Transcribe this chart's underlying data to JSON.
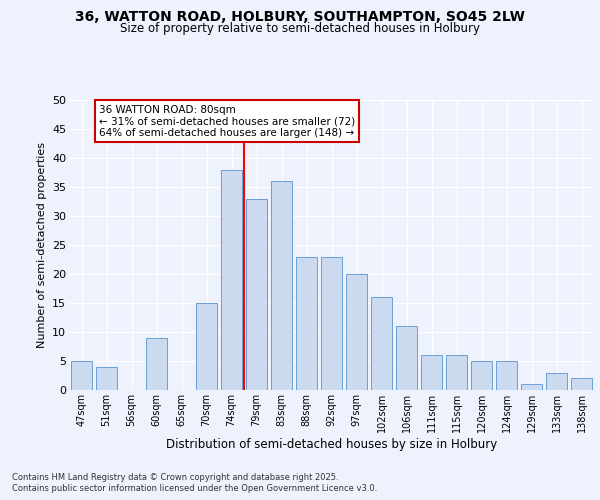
{
  "title1": "36, WATTON ROAD, HOLBURY, SOUTHAMPTON, SO45 2LW",
  "title2": "Size of property relative to semi-detached houses in Holbury",
  "xlabel": "Distribution of semi-detached houses by size in Holbury",
  "ylabel": "Number of semi-detached properties",
  "categories": [
    "47sqm",
    "51sqm",
    "56sqm",
    "60sqm",
    "65sqm",
    "70sqm",
    "74sqm",
    "79sqm",
    "83sqm",
    "88sqm",
    "92sqm",
    "97sqm",
    "102sqm",
    "106sqm",
    "111sqm",
    "115sqm",
    "120sqm",
    "124sqm",
    "129sqm",
    "133sqm",
    "138sqm"
  ],
  "values": [
    5,
    4,
    0,
    9,
    0,
    15,
    38,
    33,
    36,
    23,
    23,
    20,
    16,
    11,
    6,
    6,
    5,
    5,
    1,
    3,
    2
  ],
  "bar_color": "#ccdaf0",
  "bar_edge_color": "#6b9fd4",
  "red_line_x": 6.5,
  "annotation_title": "36 WATTON ROAD: 80sqm",
  "annotation_line1": "← 31% of semi-detached houses are smaller (72)",
  "annotation_line2": "64% of semi-detached houses are larger (148) →",
  "annotation_box_facecolor": "#ffffff",
  "annotation_box_edgecolor": "#cc0000",
  "footer1": "Contains HM Land Registry data © Crown copyright and database right 2025.",
  "footer2": "Contains public sector information licensed under the Open Government Licence v3.0.",
  "bg_color": "#edf2fc",
  "ylim_max": 50,
  "ytick_step": 5,
  "title1_fontsize": 10,
  "title2_fontsize": 8.5
}
